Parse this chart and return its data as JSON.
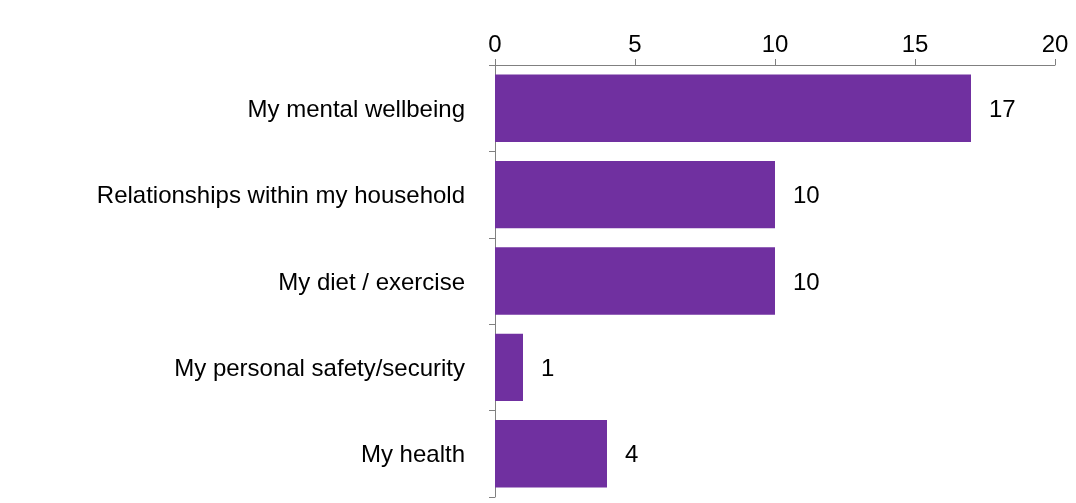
{
  "chart_data": {
    "type": "bar",
    "orientation": "horizontal",
    "categories": [
      "My mental wellbeing",
      "Relationships within my household",
      "My diet / exercise",
      "My personal safety/security",
      "My health"
    ],
    "values": [
      17,
      10,
      10,
      1,
      4
    ],
    "color": "#7030a0",
    "xlim": [
      0,
      20
    ],
    "xticks": [
      0,
      5,
      10,
      15,
      20
    ],
    "grid": false,
    "data_labels": true
  }
}
